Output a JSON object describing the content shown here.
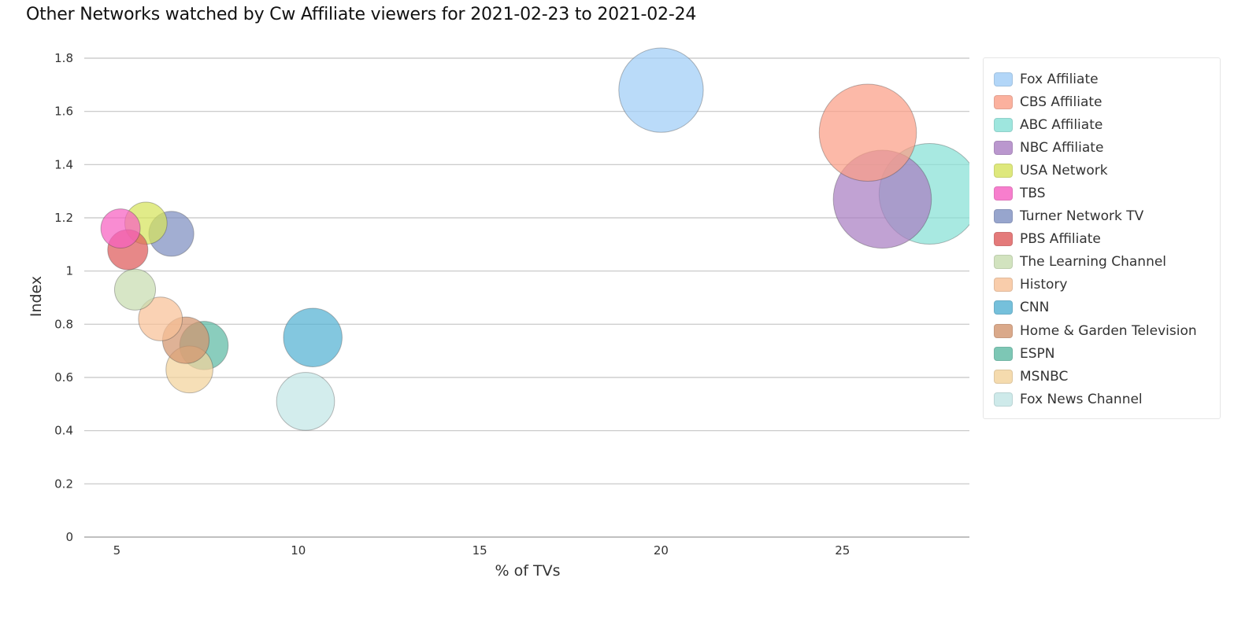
{
  "chart_data": {
    "type": "scatter",
    "title": "Other Networks watched by Cw Affiliate viewers for 2021-02-23 to 2021-02-24",
    "xlabel": "% of TVs",
    "ylabel": "Index",
    "xlim": [
      4.1,
      28.5
    ],
    "ylim": [
      0,
      1.8
    ],
    "x_ticks": [
      5,
      10,
      15,
      20,
      25
    ],
    "y_ticks": [
      0,
      0.2,
      0.4,
      0.6,
      0.8,
      1,
      1.2,
      1.4,
      1.6,
      1.8
    ],
    "y_tick_labels": [
      "0",
      "0.2",
      "0.4",
      "0.6",
      "0.8",
      "1",
      "1.2",
      "1.4",
      "1.6",
      "1.8"
    ],
    "grid": "horizontal",
    "legend_position": "right",
    "series": [
      {
        "name": "Fox Affiliate",
        "x": 20.0,
        "y": 1.68,
        "color": "#9fcdf7"
      },
      {
        "name": "CBS Affiliate",
        "x": 25.7,
        "y": 1.52,
        "color": "#fb9e87"
      },
      {
        "name": "ABC Affiliate",
        "x": 27.4,
        "y": 1.29,
        "color": "#86e1d6"
      },
      {
        "name": "NBC Affiliate",
        "x": 26.1,
        "y": 1.27,
        "color": "#a97ec2"
      },
      {
        "name": "USA Network",
        "x": 5.8,
        "y": 1.18,
        "color": "#d6e35c"
      },
      {
        "name": "TBS",
        "x": 5.1,
        "y": 1.16,
        "color": "#f65fc1"
      },
      {
        "name": "Turner Network TV",
        "x": 6.5,
        "y": 1.14,
        "color": "#7e8fc1"
      },
      {
        "name": "PBS Affiliate",
        "x": 5.3,
        "y": 1.08,
        "color": "#de5a5a"
      },
      {
        "name": "The Learning Channel",
        "x": 5.5,
        "y": 0.93,
        "color": "#c7ddb0"
      },
      {
        "name": "History",
        "x": 6.2,
        "y": 0.82,
        "color": "#f8c197"
      },
      {
        "name": "CNN",
        "x": 10.4,
        "y": 0.75,
        "color": "#53b1d3"
      },
      {
        "name": "Home & Garden Television",
        "x": 6.9,
        "y": 0.74,
        "color": "#d2946e"
      },
      {
        "name": "ESPN",
        "x": 7.4,
        "y": 0.72,
        "color": "#5dbaa3"
      },
      {
        "name": "MSNBC",
        "x": 7.0,
        "y": 0.63,
        "color": "#f3d39b"
      },
      {
        "name": "Fox News Channel",
        "x": 10.2,
        "y": 0.51,
        "color": "#c2e6e6"
      }
    ]
  }
}
